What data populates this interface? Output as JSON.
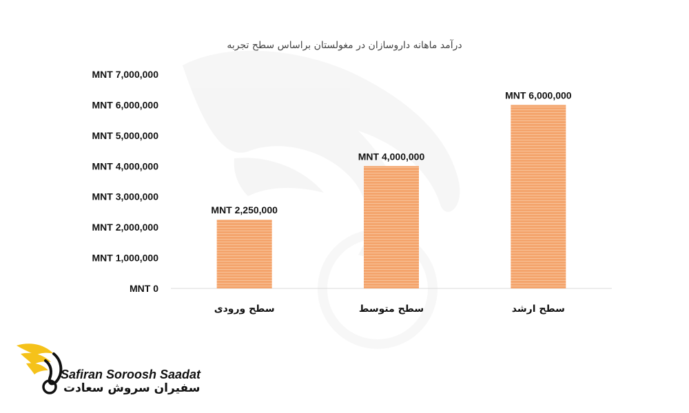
{
  "chart_data": {
    "type": "bar",
    "title": "درآمد ماهانه داروسازان در مغولستان براساس سطح تجربه",
    "categories": [
      "سطح ورودی",
      "سطح متوسط",
      "سطح ارشد"
    ],
    "values": [
      2250000,
      4000000,
      6000000
    ],
    "data_labels": [
      "MNT 2,250,000",
      "MNT 4,000,000",
      "MNT 6,000,000"
    ],
    "y_ticks": [
      {
        "value": 0,
        "label": "MNT 0"
      },
      {
        "value": 1000000,
        "label": "MNT 1,000,000"
      },
      {
        "value": 2000000,
        "label": "MNT 2,000,000"
      },
      {
        "value": 3000000,
        "label": "MNT 3,000,000"
      },
      {
        "value": 4000000,
        "label": "MNT 4,000,000"
      },
      {
        "value": 5000000,
        "label": "MNT 5,000,000"
      },
      {
        "value": 6000000,
        "label": "MNT 6,000,000"
      },
      {
        "value": 7000000,
        "label": "MNT 7,000,000"
      }
    ],
    "ylim": [
      0,
      7000000
    ],
    "grid": false,
    "legend": "none",
    "colors": {
      "bar": "#F4A46C",
      "bar_stripe": "#F8C49B",
      "axis": "#D9D9D9"
    }
  },
  "brand": {
    "name_latin": "Safiran Soroosh Saadat",
    "name_persian": "سفیران سروش سعادت",
    "logo_icon": "swan-icon",
    "accent_color": "#F5C21A"
  }
}
